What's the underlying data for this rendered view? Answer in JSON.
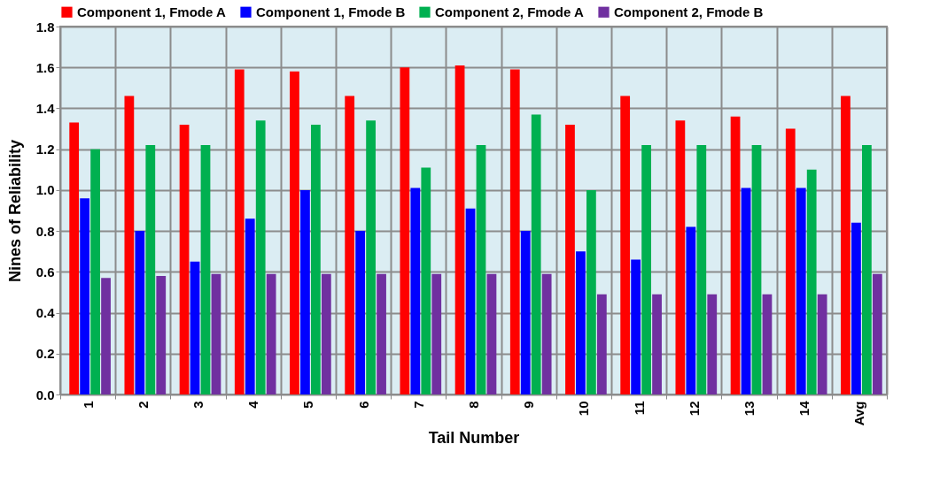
{
  "chart_data": {
    "type": "bar",
    "xlabel": "Tail Number",
    "ylabel": "Nines of Reliability",
    "categories": [
      "1",
      "2",
      "3",
      "4",
      "5",
      "6",
      "7",
      "8",
      "9",
      "10",
      "11",
      "12",
      "13",
      "14",
      "Avg"
    ],
    "series": [
      {
        "name": "Component 1, Fmode A",
        "color": "#ff0000",
        "values": [
          1.33,
          1.46,
          1.32,
          1.59,
          1.58,
          1.46,
          1.6,
          1.61,
          1.59,
          1.32,
          1.46,
          1.34,
          1.36,
          1.3,
          1.46
        ]
      },
      {
        "name": "Component 1, Fmode B",
        "color": "#0000ff",
        "values": [
          0.96,
          0.8,
          0.65,
          0.86,
          1.0,
          0.8,
          1.01,
          0.91,
          0.8,
          0.7,
          0.66,
          0.82,
          1.01,
          1.01,
          0.84
        ]
      },
      {
        "name": "Component 2, Fmode A",
        "color": "#00b050",
        "values": [
          1.2,
          1.22,
          1.22,
          1.34,
          1.32,
          1.34,
          1.11,
          1.22,
          1.37,
          1.0,
          1.22,
          1.22,
          1.22,
          1.1,
          1.22
        ]
      },
      {
        "name": "Component 2, Fmode B",
        "color": "#7030a0",
        "values": [
          0.57,
          0.58,
          0.59,
          0.59,
          0.59,
          0.59,
          0.59,
          0.59,
          0.59,
          0.49,
          0.49,
          0.49,
          0.49,
          0.49,
          0.59
        ]
      }
    ],
    "ylim": [
      0,
      1.8
    ],
    "yticks": [
      {
        "value": 0,
        "label": "0.0"
      },
      {
        "value": 0.2,
        "label": "0.2"
      },
      {
        "value": 0.4,
        "label": "0.4"
      },
      {
        "value": 0.6,
        "label": "0.6"
      },
      {
        "value": 0.8,
        "label": "0.8"
      },
      {
        "value": 1.0,
        "label": "1.0"
      },
      {
        "value": 1.2,
        "label": "1.2"
      },
      {
        "value": 1.4,
        "label": "1.4"
      },
      {
        "value": 1.6,
        "label": "1.6"
      },
      {
        "value": 1.8,
        "label": "1.8"
      }
    ],
    "grid": true,
    "legend": "top"
  }
}
